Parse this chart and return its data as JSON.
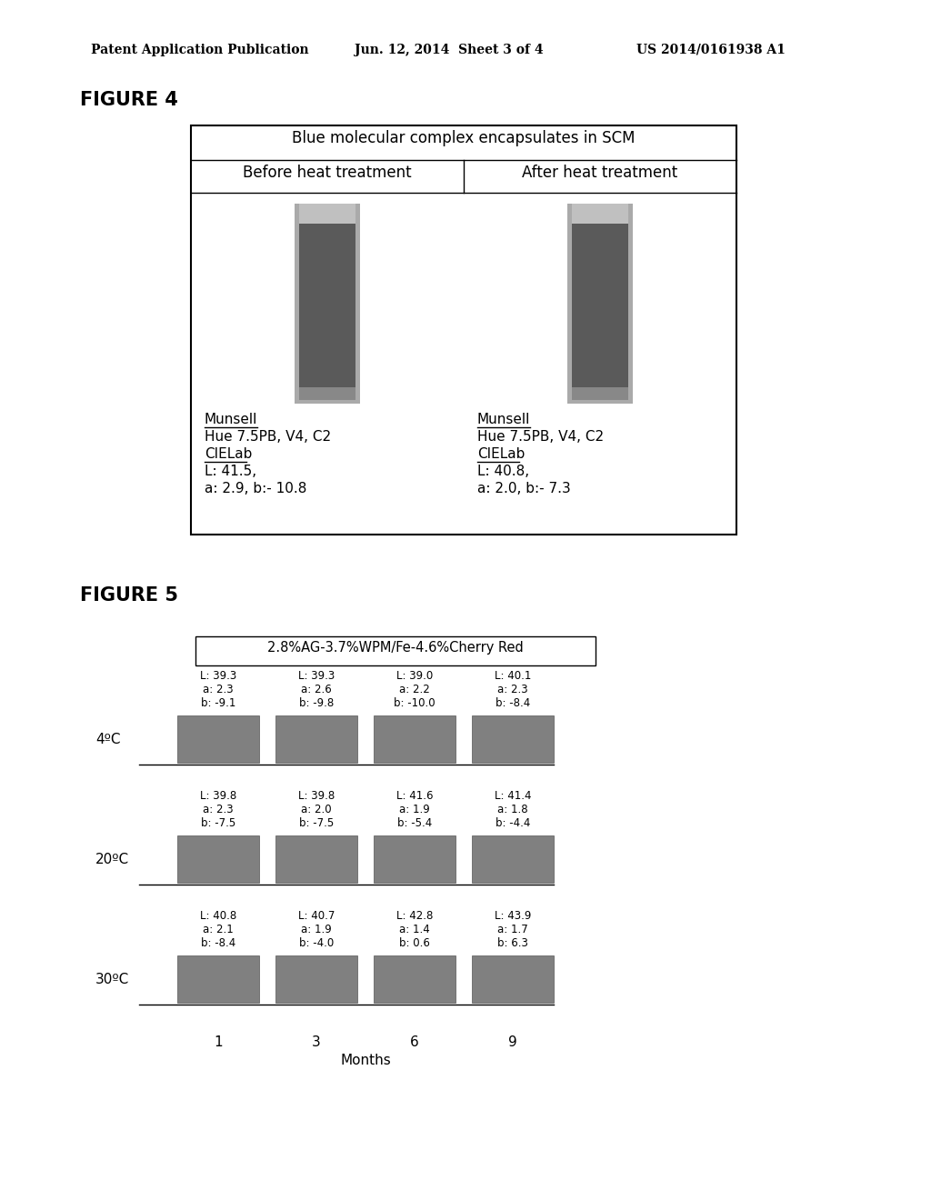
{
  "page_header_left": "Patent Application Publication",
  "page_header_center": "Jun. 12, 2014  Sheet 3 of 4",
  "page_header_right": "US 2014/0161938 A1",
  "fig4_title": "FIGURE 4",
  "fig4_table_header": "Blue molecular complex encapsulates in SCM",
  "fig4_col1_header": "Before heat treatment",
  "fig4_col2_header": "After heat treatment",
  "fig4_col1_munsell": "Munsell",
  "fig4_col1_hue": "Hue 7.5PB, V4, C2",
  "fig4_col1_cielab": "CIELab",
  "fig4_col1_L": "L: 41.5,",
  "fig4_col1_ab": "a: 2.9, b:- 10.8",
  "fig4_col2_munsell": "Munsell",
  "fig4_col2_hue": "Hue 7.5PB, V4, C2",
  "fig4_col2_cielab": "CIELab",
  "fig4_col2_L": "L: 40.8,",
  "fig4_col2_ab": "a: 2.0, b:- 7.3",
  "fig5_title": "FIGURE 5",
  "fig5_box_label": "2.8%AG-3.7%WPM/Fe-4.6%Cherry Red",
  "fig5_months": [
    1,
    3,
    6,
    9
  ],
  "fig5_xlabel": "Months",
  "fig5_temps": [
    "4ºC",
    "20ºC",
    "30ºC"
  ],
  "fig5_labels": [
    [
      [
        "L: 39.3",
        "a: 2.3",
        "b: -9.1"
      ],
      [
        "L: 39.3",
        "a: 2.6",
        "b: -9.8"
      ],
      [
        "L: 39.0",
        "a: 2.2",
        "b: -10.0"
      ],
      [
        "L: 40.1",
        "a: 2.3",
        "b: -8.4"
      ]
    ],
    [
      [
        "L: 39.8",
        "a: 2.3",
        "b: -7.5"
      ],
      [
        "L: 39.8",
        "a: 2.0",
        "b: -7.5"
      ],
      [
        "L: 41.6",
        "a: 1.9",
        "b: -5.4"
      ],
      [
        "L: 41.4",
        "a: 1.8",
        "b: -4.4"
      ]
    ],
    [
      [
        "L: 40.8",
        "a: 2.1",
        "b: -8.4"
      ],
      [
        "L: 40.7",
        "a: 1.9",
        "b: -4.0"
      ],
      [
        "L: 42.8",
        "a: 1.4",
        "b: 0.6"
      ],
      [
        "L: 43.9",
        "a: 1.7",
        "b: 6.3"
      ]
    ]
  ],
  "swatch_color": "#808080",
  "swatch_border": "#555555",
  "bg_color": "#ffffff",
  "text_color": "#000000",
  "table_border_color": "#000000",
  "tube_dark": "#5a5a5a",
  "tube_border": "#aaaaaa",
  "tube_top": "#c0c0c0",
  "tube_bot": "#888888"
}
